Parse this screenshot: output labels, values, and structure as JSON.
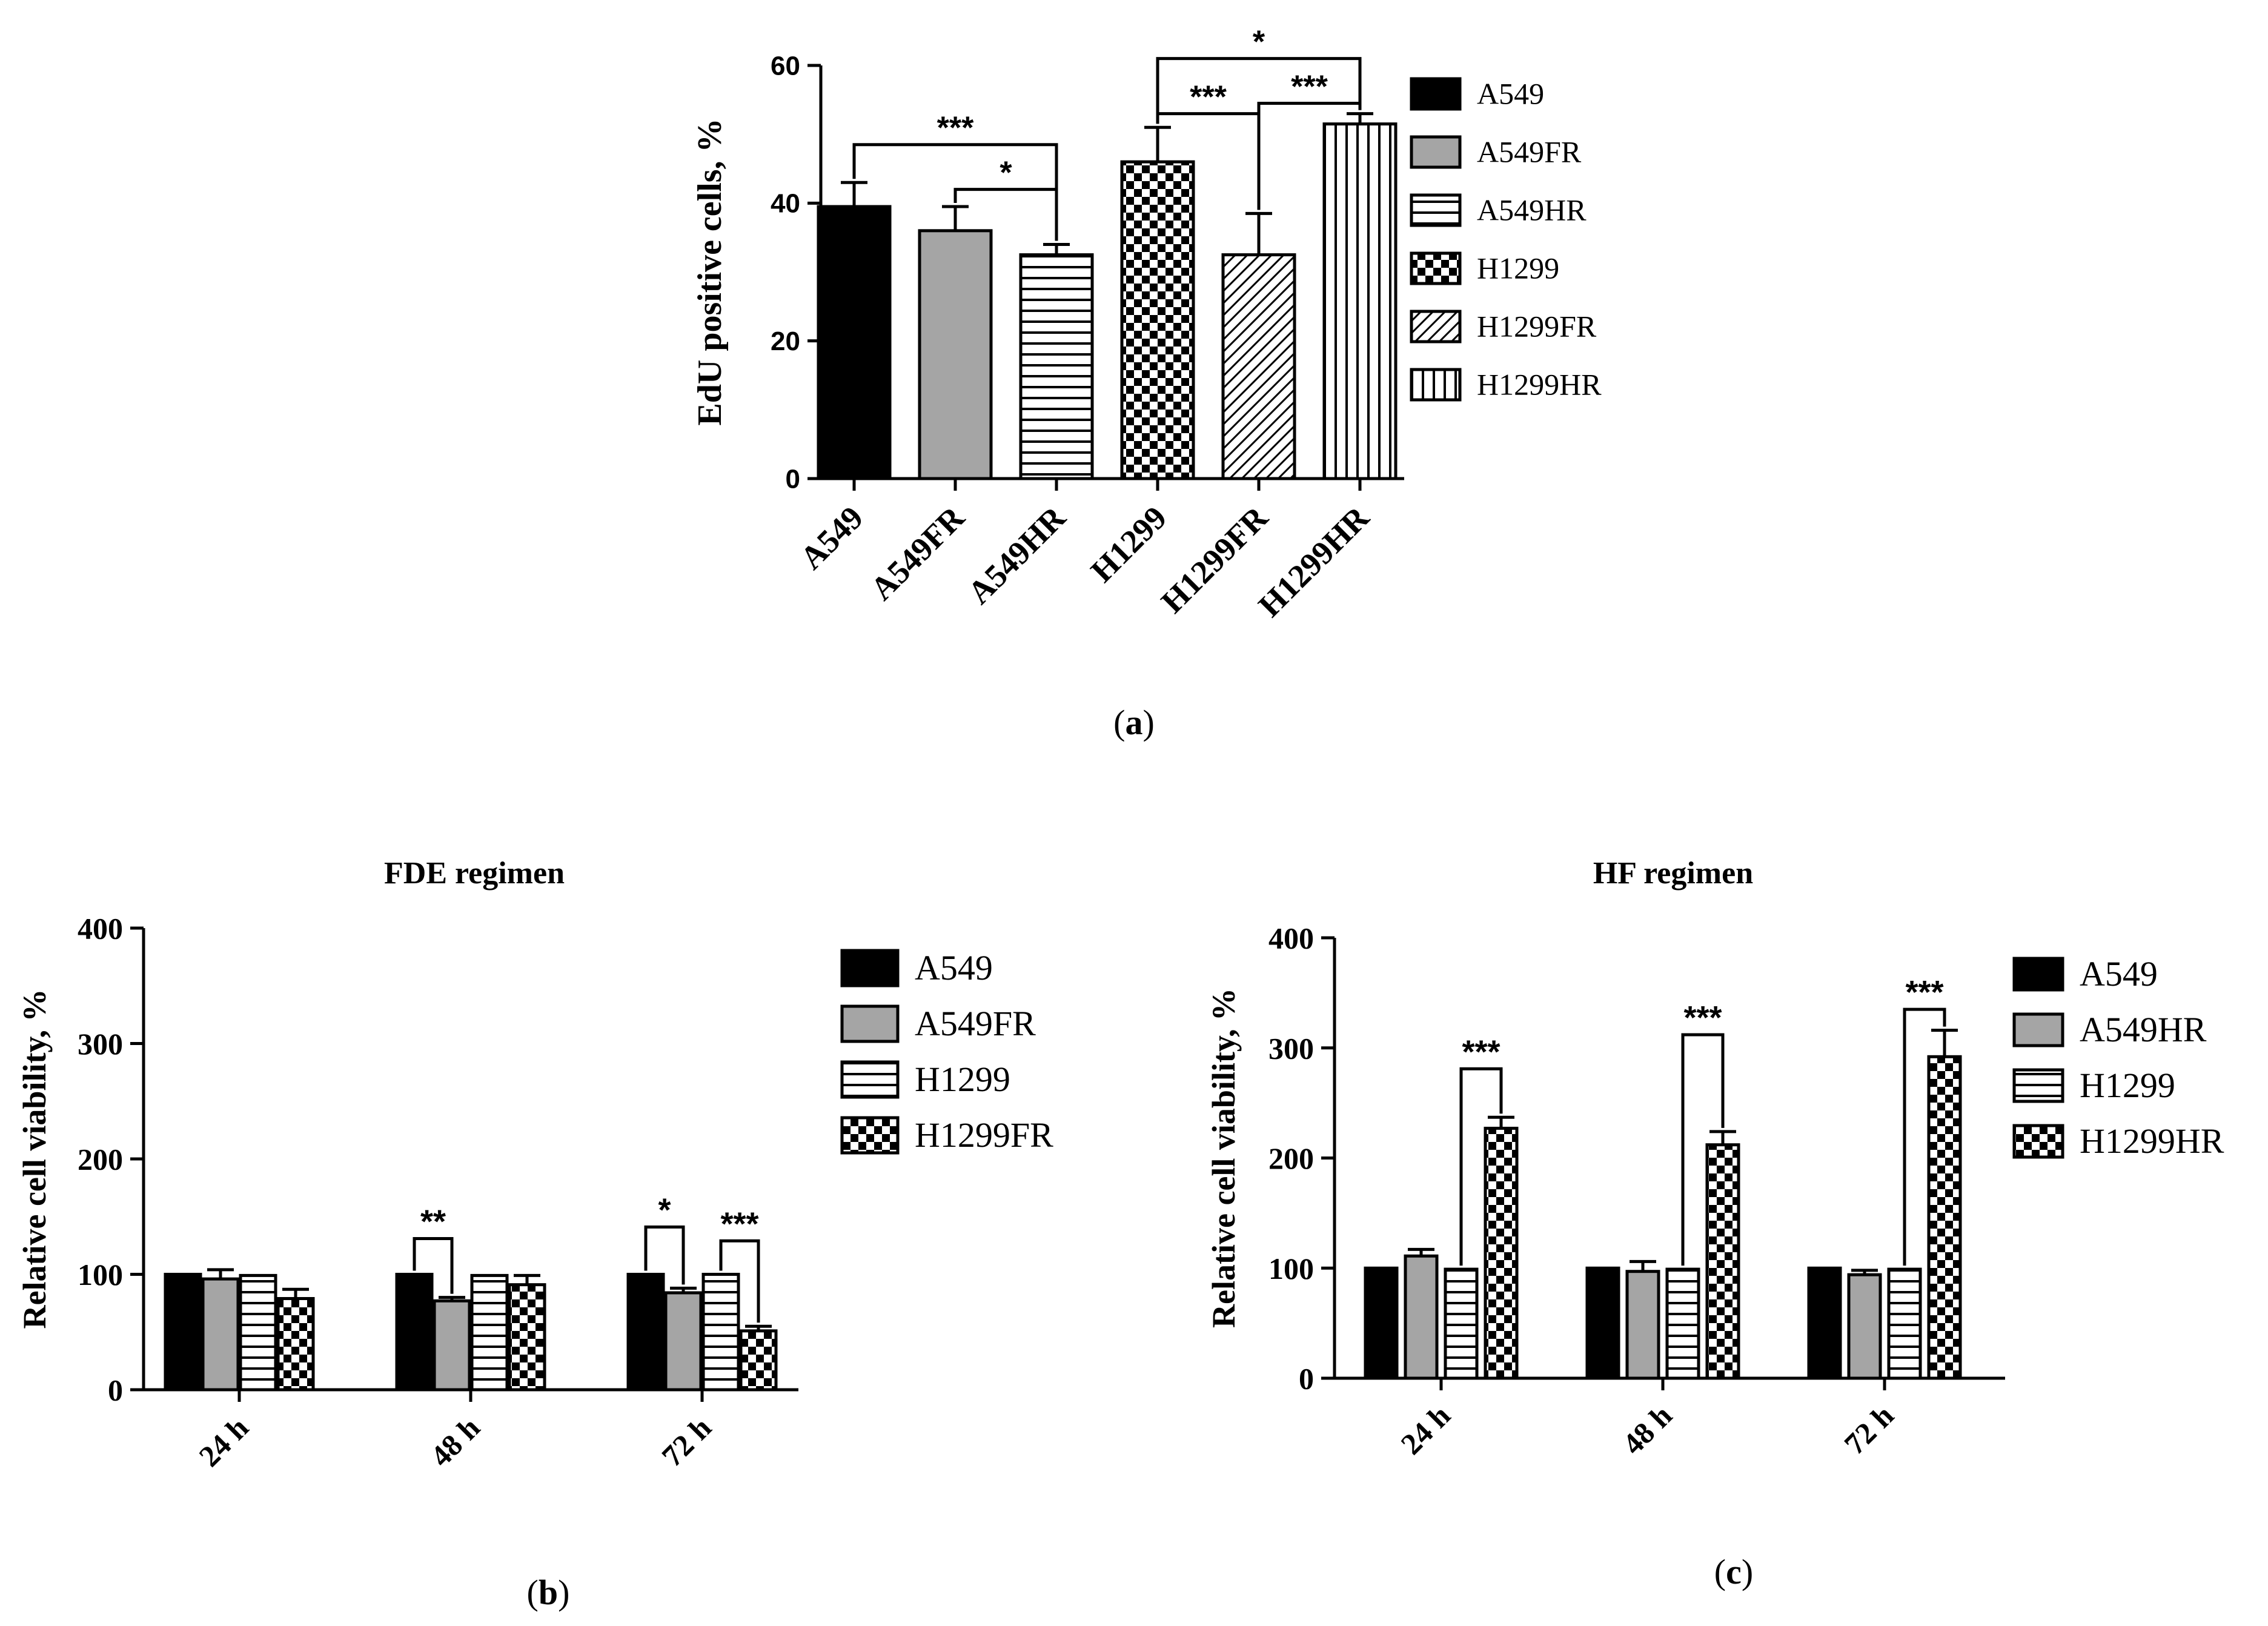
{
  "figure_labels": {
    "a": "a",
    "b": "b",
    "c": "c"
  },
  "chart_data": [
    {
      "id": "a",
      "type": "bar",
      "title": "",
      "xlabel": "",
      "ylabel": "EdU positive cells, %",
      "ylim": [
        0,
        60
      ],
      "yticks": [
        "0",
        "20",
        "40",
        "60"
      ],
      "categories": [
        "A549",
        "A549FR",
        "A549HR",
        "H1299",
        "H1299FR",
        "H1299HR"
      ],
      "values": [
        39.5,
        36.0,
        32.5,
        46.0,
        32.5,
        51.5
      ],
      "errors": [
        3.5,
        3.5,
        1.5,
        5.0,
        6.0,
        1.5
      ],
      "patterns": [
        "solid-black",
        "solid-gray",
        "hlines",
        "checker",
        "diag",
        "vlines"
      ],
      "legend": [
        "A549",
        "A549FR",
        "A549HR",
        "H1299",
        "H1299FR",
        "H1299HR"
      ],
      "significance": [
        {
          "from": "A549",
          "to": "A549HR",
          "label": "***",
          "y": 48.5
        },
        {
          "from": "A549FR",
          "to": "A549HR",
          "label": "*",
          "y": 42.0
        },
        {
          "from": "H1299",
          "to": "H1299FR",
          "label": "***",
          "y": 53.0
        },
        {
          "from": "H1299FR",
          "to": "H1299HR",
          "label": "***",
          "y": 54.5
        },
        {
          "from": "H1299",
          "to": "H1299HR",
          "label": "*",
          "y": 61.0
        }
      ]
    },
    {
      "id": "b",
      "type": "bar",
      "title": "FDE regimen",
      "xlabel": "",
      "ylabel": "Relative cell viability, %",
      "ylim": [
        0,
        400
      ],
      "yticks": [
        "0",
        "100",
        "200",
        "300",
        "400"
      ],
      "categories": [
        "24 h",
        "48 h",
        "72 h"
      ],
      "series": [
        {
          "name": "A549",
          "pattern": "solid-black",
          "values": [
            100,
            100,
            100
          ],
          "errors": [
            0,
            0,
            0
          ]
        },
        {
          "name": "A549FR",
          "pattern": "solid-gray",
          "values": [
            96,
            77,
            84
          ],
          "errors": [
            8,
            3,
            4
          ]
        },
        {
          "name": "H1299",
          "pattern": "hlines",
          "values": [
            99,
            99,
            100
          ],
          "errors": [
            0,
            0,
            0
          ]
        },
        {
          "name": "H1299FR",
          "pattern": "checker",
          "values": [
            79,
            91,
            51
          ],
          "errors": [
            8,
            8,
            4
          ]
        }
      ],
      "significance": [
        {
          "group": "48 h",
          "from": "A549",
          "to": "A549FR",
          "label": "**",
          "y": 131
        },
        {
          "group": "72 h",
          "from": "A549",
          "to": "A549FR",
          "label": "*",
          "y": 141
        },
        {
          "group": "72 h",
          "from": "H1299",
          "to": "H1299FR",
          "label": "***",
          "y": 129
        }
      ]
    },
    {
      "id": "c",
      "type": "bar",
      "title": "HF regimen",
      "xlabel": "",
      "ylabel": "Relative cell viability, %",
      "ylim": [
        0,
        400
      ],
      "yticks": [
        "0",
        "100",
        "200",
        "300",
        "400"
      ],
      "categories": [
        "24 h",
        "48 h",
        "72 h"
      ],
      "series": [
        {
          "name": "A549",
          "pattern": "solid-black",
          "values": [
            100,
            100,
            100
          ],
          "errors": [
            0,
            0,
            0
          ]
        },
        {
          "name": "A549HR",
          "pattern": "solid-gray",
          "values": [
            111,
            97,
            94
          ],
          "errors": [
            6,
            9,
            4
          ]
        },
        {
          "name": "H1299",
          "pattern": "hlines",
          "values": [
            99,
            99,
            99
          ],
          "errors": [
            0,
            0,
            0
          ]
        },
        {
          "name": "H1299HR",
          "pattern": "checker",
          "values": [
            227,
            212,
            292
          ],
          "errors": [
            10,
            12,
            24
          ]
        }
      ],
      "significance": [
        {
          "group": "24 h",
          "from": "H1299",
          "to": "H1299HR",
          "label": "***",
          "y": 281
        },
        {
          "group": "48 h",
          "from": "H1299",
          "to": "H1299HR",
          "label": "***",
          "y": 312
        },
        {
          "group": "72 h",
          "from": "H1299",
          "to": "H1299HR",
          "label": "***",
          "y": 335
        }
      ]
    }
  ]
}
